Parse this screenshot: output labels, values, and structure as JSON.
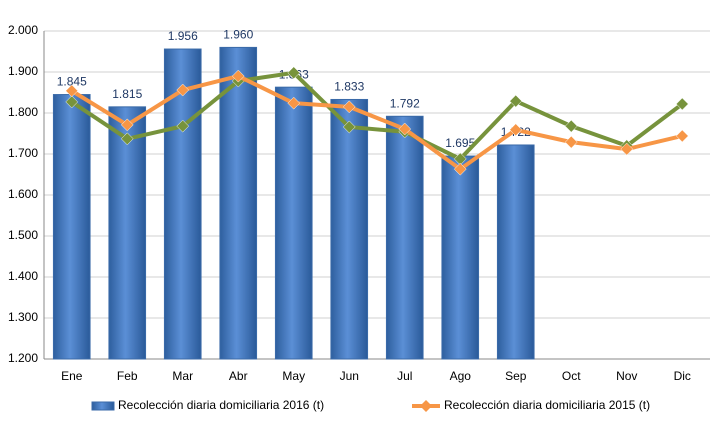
{
  "chart_data": {
    "type": "bar",
    "categories": [
      "Ene",
      "Feb",
      "Mar",
      "Abr",
      "May",
      "Jun",
      "Jul",
      "Ago",
      "Sep",
      "Oct",
      "Nov",
      "Dic"
    ],
    "series": [
      {
        "name": "Recolección diaria domiciliaria 2016 (t)",
        "type": "bar",
        "color": "#4f81bd",
        "values": [
          1845,
          1815,
          1956,
          1960,
          1863,
          1833,
          1792,
          1695,
          1722,
          null,
          null,
          null
        ],
        "value_labels": [
          "1.845",
          "1.815",
          "1.956",
          "1.960",
          "1.863",
          "1.833",
          "1.792",
          "1.695",
          "1.722",
          null,
          null,
          null
        ]
      },
      {
        "type": "line",
        "color": "#77933c",
        "values": [
          1827,
          1737,
          1768,
          1878,
          1898,
          1766,
          1754,
          1688,
          1829,
          1768,
          1720,
          1822
        ]
      },
      {
        "name": "Recolección diaria domiciliaria 2015 (t)",
        "type": "line",
        "color": "#f79646",
        "values": [
          1854,
          1771,
          1856,
          1890,
          1824,
          1815,
          1761,
          1663,
          1759,
          1729,
          1712,
          1744
        ]
      }
    ],
    "ylim": [
      1200,
      2000
    ],
    "yticks": [
      {
        "value": 1200,
        "label": "1.200"
      },
      {
        "value": 1300,
        "label": "1.300"
      },
      {
        "value": 1400,
        "label": "1.400"
      },
      {
        "value": 1500,
        "label": "1.500"
      },
      {
        "value": 1600,
        "label": "1.600"
      },
      {
        "value": 1700,
        "label": "1.700"
      },
      {
        "value": 1800,
        "label": "1.800"
      },
      {
        "value": 1900,
        "label": "1.900"
      },
      {
        "value": 2000,
        "label": "2.000"
      }
    ],
    "grid": true,
    "legend": "bottom"
  }
}
